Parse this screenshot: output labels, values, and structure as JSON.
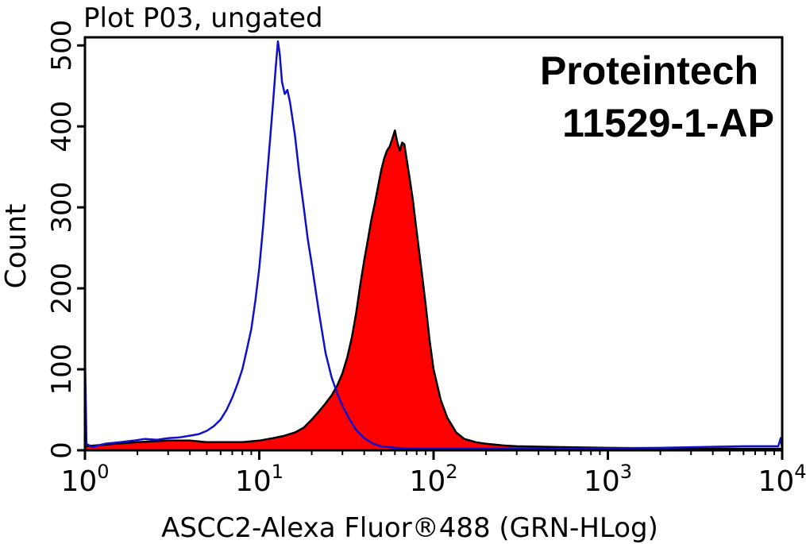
{
  "chart_data": {
    "type": "area",
    "title": "Plot P03, ungated",
    "xlabel": "ASCC2-Alexa Fluor®488 (GRN-HLog)",
    "ylabel": "Count",
    "x_scale": "log",
    "xlim": [
      1,
      10000
    ],
    "ylim": [
      0,
      510
    ],
    "x_ticks": [
      {
        "value": 1,
        "base": "10",
        "exp": "0"
      },
      {
        "value": 10,
        "base": "10",
        "exp": "1"
      },
      {
        "value": 100,
        "base": "10",
        "exp": "2"
      },
      {
        "value": 1000,
        "base": "10",
        "exp": "3"
      },
      {
        "value": 10000,
        "base": "10",
        "exp": "4"
      }
    ],
    "y_ticks": [
      {
        "value": 0,
        "label": "0"
      },
      {
        "value": 100,
        "label": "100"
      },
      {
        "value": 200,
        "label": "200"
      },
      {
        "value": 300,
        "label": "300"
      },
      {
        "value": 400,
        "label": "400"
      },
      {
        "value": 500,
        "label": "500"
      }
    ],
    "annotations": [
      "Proteintech",
      "11529-1-AP"
    ],
    "grid": false,
    "series": [
      {
        "style": "line",
        "color": "#1010c8",
        "points": [
          [
            1.0,
            120
          ],
          [
            1.02,
            8
          ],
          [
            1.1,
            4
          ],
          [
            1.3,
            8
          ],
          [
            1.6,
            10
          ],
          [
            1.9,
            12
          ],
          [
            2.2,
            14
          ],
          [
            2.6,
            13
          ],
          [
            3.0,
            15
          ],
          [
            3.5,
            16
          ],
          [
            4.0,
            18
          ],
          [
            4.5,
            20
          ],
          [
            5.0,
            24
          ],
          [
            5.5,
            30
          ],
          [
            6.0,
            38
          ],
          [
            6.5,
            50
          ],
          [
            7.0,
            65
          ],
          [
            7.5,
            82
          ],
          [
            8.0,
            100
          ],
          [
            8.5,
            125
          ],
          [
            9.0,
            150
          ],
          [
            9.5,
            185
          ],
          [
            10.0,
            225
          ],
          [
            10.5,
            275
          ],
          [
            11.0,
            330
          ],
          [
            11.5,
            380
          ],
          [
            12.0,
            430
          ],
          [
            12.5,
            480
          ],
          [
            12.8,
            505
          ],
          [
            13.1,
            490
          ],
          [
            13.5,
            455
          ],
          [
            14.0,
            440
          ],
          [
            14.5,
            445
          ],
          [
            15.0,
            430
          ],
          [
            16.0,
            390
          ],
          [
            17.0,
            340
          ],
          [
            18.0,
            300
          ],
          [
            19.0,
            260
          ],
          [
            20.0,
            230
          ],
          [
            22.0,
            170
          ],
          [
            24.0,
            120
          ],
          [
            26.0,
            90
          ],
          [
            28.0,
            70
          ],
          [
            30.0,
            55
          ],
          [
            33.0,
            38
          ],
          [
            36.0,
            25
          ],
          [
            40.0,
            15
          ],
          [
            45.0,
            8
          ],
          [
            50.0,
            5
          ],
          [
            60.0,
            3
          ],
          [
            80.0,
            2
          ],
          [
            150.0,
            2
          ],
          [
            500.0,
            2
          ],
          [
            2000.0,
            3
          ],
          [
            6000.0,
            5
          ],
          [
            9500.0,
            5
          ],
          [
            9800.0,
            15
          ],
          [
            10000.0,
            2
          ]
        ]
      },
      {
        "style": "filled",
        "color": "#ff0000",
        "outline": "#000000",
        "points": [
          [
            1.0,
            5
          ],
          [
            1.5,
            8
          ],
          [
            2.0,
            10
          ],
          [
            3.0,
            12
          ],
          [
            4.0,
            12
          ],
          [
            5.0,
            10
          ],
          [
            6.0,
            10
          ],
          [
            8.0,
            10
          ],
          [
            10.0,
            12
          ],
          [
            12.0,
            15
          ],
          [
            14.0,
            18
          ],
          [
            16.0,
            22
          ],
          [
            18.0,
            28
          ],
          [
            20.0,
            38
          ],
          [
            22.0,
            48
          ],
          [
            24.0,
            58
          ],
          [
            26.0,
            68
          ],
          [
            28.0,
            80
          ],
          [
            30.0,
            95
          ],
          [
            32.0,
            115
          ],
          [
            34.0,
            140
          ],
          [
            36.0,
            170
          ],
          [
            38.0,
            205
          ],
          [
            40.0,
            235
          ],
          [
            42.0,
            260
          ],
          [
            44.0,
            285
          ],
          [
            46.0,
            305
          ],
          [
            48.0,
            325
          ],
          [
            50.0,
            345
          ],
          [
            52.0,
            360
          ],
          [
            54.0,
            370
          ],
          [
            56.0,
            375
          ],
          [
            58.0,
            385
          ],
          [
            60.0,
            395
          ],
          [
            62.0,
            380
          ],
          [
            64.0,
            370
          ],
          [
            66.0,
            380
          ],
          [
            68.0,
            378
          ],
          [
            70.0,
            360
          ],
          [
            73.0,
            335
          ],
          [
            76.0,
            310
          ],
          [
            80.0,
            270
          ],
          [
            85.0,
            225
          ],
          [
            90.0,
            180
          ],
          [
            95.0,
            135
          ],
          [
            100.0,
            100
          ],
          [
            110.0,
            62
          ],
          [
            120.0,
            40
          ],
          [
            135.0,
            22
          ],
          [
            150.0,
            14
          ],
          [
            175.0,
            10
          ],
          [
            200.0,
            8
          ],
          [
            250.0,
            6
          ],
          [
            300.0,
            5
          ],
          [
            500.0,
            4
          ],
          [
            1000.0,
            3
          ],
          [
            3000.0,
            2
          ],
          [
            9000.0,
            2
          ],
          [
            10000.0,
            2
          ]
        ]
      }
    ]
  }
}
